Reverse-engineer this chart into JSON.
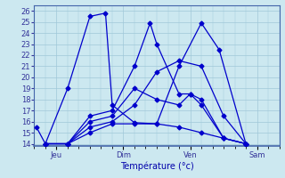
{
  "xlabel": "Température (°c)",
  "bg_color": "#cce8f0",
  "line_color": "#0000cc",
  "yticks": [
    14,
    15,
    16,
    17,
    18,
    19,
    20,
    21,
    22,
    23,
    24,
    25,
    26
  ],
  "day_labels": [
    "Jeu",
    "Dim",
    "Ven",
    "Sam"
  ],
  "day_positions": [
    1,
    4,
    7,
    10
  ],
  "xlim": [
    0,
    11
  ],
  "ylim": [
    13.8,
    26.5
  ],
  "series": [
    {
      "x": [
        0.1,
        0.5,
        1.5,
        2.5,
        3.2,
        3.5,
        4.5,
        5.5,
        6.5,
        7.5,
        8.3,
        9.5
      ],
      "y": [
        15.5,
        14.0,
        19.0,
        25.5,
        25.8,
        17.5,
        15.9,
        15.8,
        21.0,
        24.9,
        22.5,
        14.0
      ]
    },
    {
      "x": [
        0.5,
        1.5,
        2.5,
        3.5,
        4.5,
        5.5,
        6.5,
        7.5,
        8.5,
        9.5
      ],
      "y": [
        14.0,
        14.0,
        15.0,
        15.8,
        15.8,
        15.8,
        15.5,
        15.0,
        14.5,
        14.0
      ]
    },
    {
      "x": [
        0.5,
        1.5,
        2.5,
        3.5,
        4.5,
        5.5,
        6.5,
        7.5,
        8.5,
        9.5
      ],
      "y": [
        14.0,
        14.0,
        15.5,
        16.0,
        17.5,
        20.5,
        21.5,
        21.0,
        16.5,
        14.0
      ]
    },
    {
      "x": [
        0.5,
        1.5,
        2.5,
        3.5,
        4.5,
        5.5,
        6.5,
        7.0,
        7.5,
        8.5,
        9.5
      ],
      "y": [
        14.0,
        14.0,
        16.0,
        16.5,
        19.0,
        18.0,
        17.5,
        18.5,
        18.0,
        14.5,
        14.0
      ]
    },
    {
      "x": [
        0.5,
        1.5,
        2.5,
        3.5,
        4.5,
        5.2,
        5.5,
        6.5,
        7.0,
        7.5,
        8.5,
        9.5
      ],
      "y": [
        14.0,
        14.0,
        16.5,
        17.0,
        21.0,
        24.9,
        23.0,
        18.5,
        18.5,
        17.5,
        14.5,
        14.0
      ]
    }
  ],
  "grid_color": "#a0c8d8",
  "spine_color": "#4466aa",
  "xlabel_color": "#0000aa",
  "tick_color": "#333399",
  "xlabel_fontsize": 7,
  "tick_fontsize": 6,
  "lw": 0.9,
  "ms": 2.5
}
